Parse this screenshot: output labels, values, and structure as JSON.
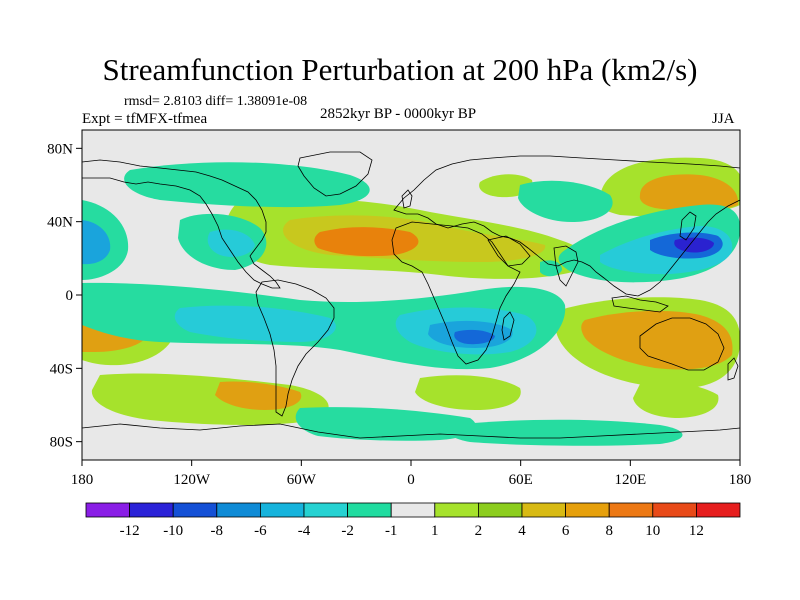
{
  "title": "Streamfunction Perturbation at 200 hPa (km2/s)",
  "stats": "rmsd= 2.8103 diff= 1.38091e-08",
  "experiment": "Expt = tfMFX-tfmea",
  "period": "2852kyr BP - 0000kyr BP",
  "season": "JJA",
  "map": {
    "lat_ticks": [
      "80N",
      "40N",
      "0",
      "40S",
      "80S"
    ],
    "lon_ticks": [
      "180",
      "120W",
      "60W",
      "0",
      "60E",
      "120E",
      "180"
    ]
  },
  "colorbar": {
    "labels": [
      "-12",
      "-10",
      "-8",
      "-6",
      "-4",
      "-2",
      "-1",
      "1",
      "2",
      "4",
      "6",
      "8",
      "10",
      "12"
    ],
    "colors": [
      "#8a1ee6",
      "#2b22d8",
      "#1450d6",
      "#0f8bd6",
      "#16b3dc",
      "#26d2d2",
      "#20dca0",
      "#e8e8e8",
      "#a6e22c",
      "#8ccd1e",
      "#d8ba14",
      "#e6a00c",
      "#ec7814",
      "#e84a18",
      "#e61e1e"
    ]
  },
  "field_colors": {
    "neutral": "#e8e8e8",
    "pos1": "#a6e22c",
    "pos2": "#c8c81e",
    "pos3": "#e0a012",
    "pos4": "#e8820c",
    "neg1": "#26dca0",
    "neg2": "#26cbd8",
    "neg3": "#1aa4dc",
    "neg4": "#1468d8",
    "neg5": "#2a22d0"
  }
}
